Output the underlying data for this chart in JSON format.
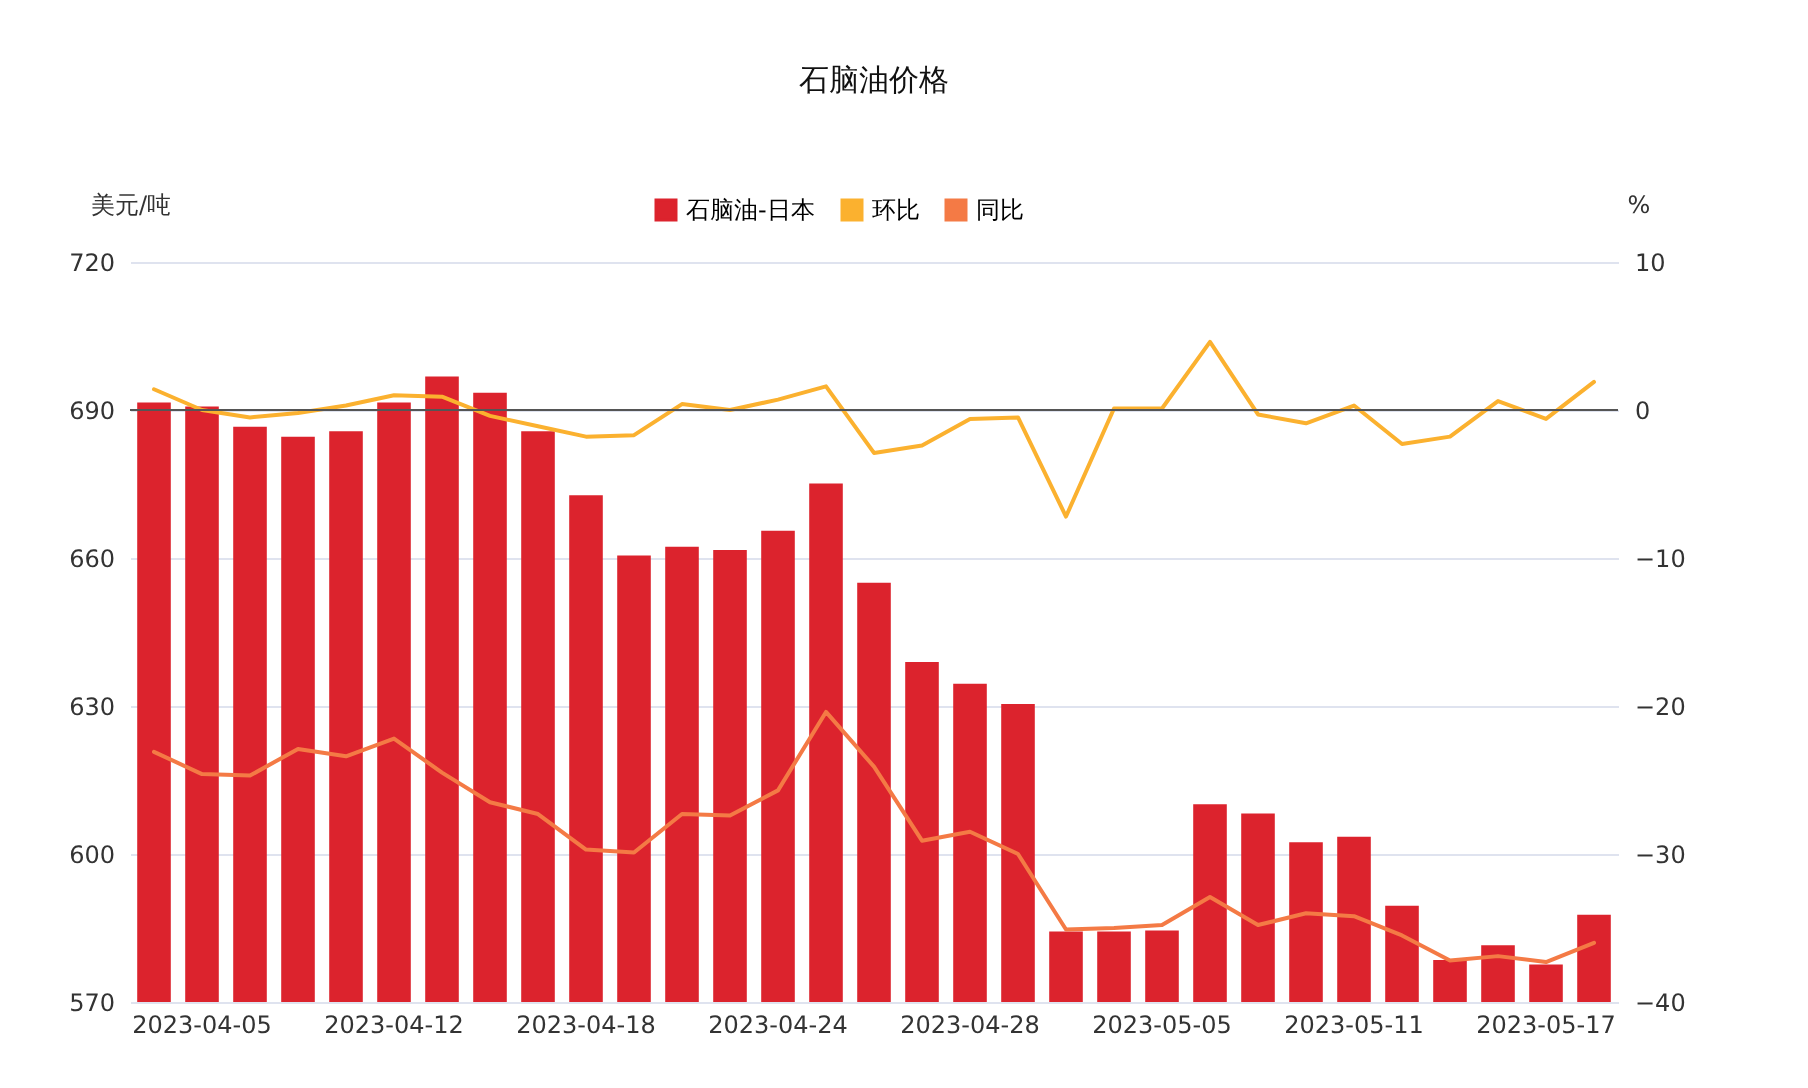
{
  "chart_data": {
    "type": "bar",
    "title": "石脑油价格",
    "ylabel": "美元/吨",
    "y2label": "%",
    "categories": [
      null,
      "2023-04-05",
      null,
      null,
      null,
      "2023-04-12",
      null,
      null,
      null,
      "2023-04-18",
      null,
      null,
      null,
      "2023-04-24",
      null,
      null,
      null,
      "2023-04-28",
      null,
      null,
      null,
      "2023-05-05",
      null,
      null,
      null,
      "2023-05-11",
      null,
      null,
      null,
      "2023-05-17",
      null
    ],
    "series": [
      {
        "name": "石脑油-日本",
        "color": "#dc232d",
        "values": [
          691.5,
          690.7,
          686.6,
          684.6,
          685.7,
          691.5,
          696.8,
          693.5,
          685.7,
          672.7,
          660.5,
          662.3,
          661.6,
          665.5,
          675.1,
          655.0,
          638.9,
          634.5,
          630.4,
          584.3,
          584.3,
          584.5,
          610.1,
          608.2,
          602.4,
          603.5,
          589.5,
          578.5,
          581.5,
          577.6,
          587.7
        ]
      },
      {
        "name": "环比",
        "type": "line",
        "axis": "y2",
        "color": "#fbb12f",
        "values": [
          1.4,
          0,
          -0.5,
          -0.2,
          0.3,
          1.0,
          0.9,
          -0.4,
          -1.1,
          -1.8,
          -1.7,
          0.4,
          0,
          0.7,
          1.6,
          -2.9,
          -2.4,
          -0.6,
          -0.5,
          -7.2,
          0.1,
          0.1,
          4.6,
          -0.3,
          -0.9,
          0.3,
          -2.3,
          -1.8,
          0.6,
          -0.6,
          1.9
        ]
      },
      {
        "name": "同比",
        "type": "line",
        "axis": "y2",
        "color": "#f47a45",
        "values": [
          -23.1,
          -24.6,
          -24.7,
          -22.9,
          -23.4,
          -22.2,
          -24.5,
          -26.5,
          -27.3,
          -29.7,
          -29.9,
          -27.3,
          -27.4,
          -25.7,
          -20.4,
          -24.1,
          -29.1,
          -28.5,
          -30.0,
          -35.1,
          -35.0,
          -34.8,
          -32.9,
          -34.8,
          -34.0,
          -34.2,
          -35.5,
          -37.2,
          -36.9,
          -37.3,
          -36.0
        ]
      }
    ],
    "ylim": [
      570,
      720
    ],
    "yticks": [
      570,
      600,
      630,
      660,
      690,
      720
    ],
    "y2lim": [
      -40,
      10
    ],
    "y2ticks": [
      -40,
      -30,
      -20,
      -10,
      0,
      10
    ],
    "ref_lines": [
      {
        "axis": "y2",
        "value": 0,
        "color": "#555555"
      }
    ],
    "grid": "y",
    "legend": "top"
  }
}
